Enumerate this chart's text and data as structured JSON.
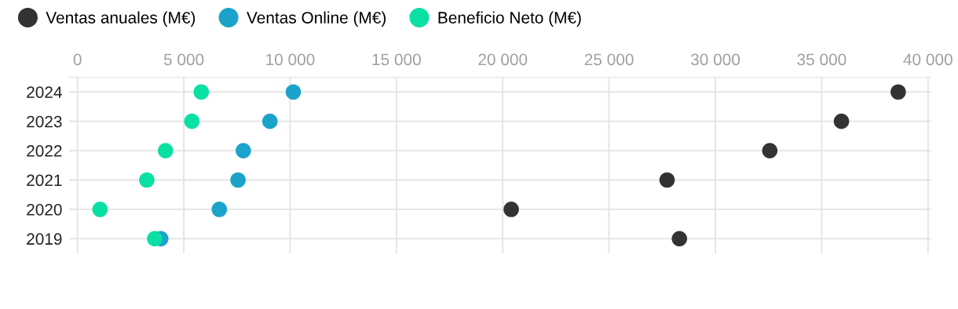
{
  "chart_data": {
    "type": "scatter",
    "orientation": "horizontal",
    "categories": [
      "2024",
      "2023",
      "2022",
      "2021",
      "2020",
      "2019"
    ],
    "series": [
      {
        "name": "Ventas anuales (M€)",
        "color": "#333333",
        "values": [
          38600,
          35930,
          32560,
          27730,
          20400,
          28310
        ]
      },
      {
        "name": "Ventas Online (M€)",
        "color": "#1ba3cc",
        "values": [
          10150,
          9050,
          7800,
          7550,
          6670,
          3920
        ]
      },
      {
        "name": "Beneficio Neto (M€)",
        "color": "#0be0a4",
        "values": [
          5820,
          5380,
          4140,
          3260,
          1060,
          3630
        ]
      }
    ],
    "xlim": [
      -400,
      40150
    ],
    "xticks": [
      0,
      {
        "value": 5000,
        "label": "5 000"
      },
      {
        "value": 10000,
        "label": "10 000"
      },
      {
        "value": 15000,
        "label": "15 000"
      },
      {
        "value": 20000,
        "label": "20 000"
      },
      {
        "value": 25000,
        "label": "25 000"
      },
      {
        "value": 30000,
        "label": "30 000"
      },
      {
        "value": 35000,
        "label": "35 000"
      },
      {
        "value": 40000,
        "label": "40 000"
      }
    ],
    "grid": true,
    "legend": "top left",
    "marker": "circle"
  }
}
